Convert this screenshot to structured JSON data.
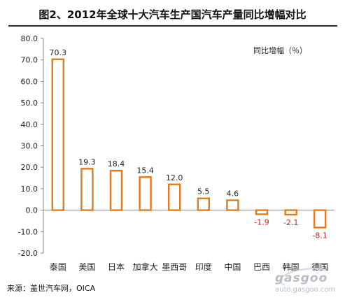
{
  "title": "图2、2012年全球十大汽车生产国汽车产量同比增幅对比",
  "legend_label": "同比增幅（％）",
  "source": "来源：盖世汽车网，OICA",
  "watermark": {
    "logo": "gasgoo",
    "url": "auto.gasgoo.com"
  },
  "colors": {
    "bar_stroke": "#e07b1c",
    "positive_label": "#222222",
    "negative_label": "#cc2222"
  },
  "chart_data": {
    "type": "bar",
    "title": "图2、2012年全球十大汽车生产国汽车产量同比增幅对比",
    "categories": [
      "泰国",
      "美国",
      "日本",
      "加拿大",
      "墨西哥",
      "印度",
      "中国",
      "巴西",
      "韩国",
      "德国"
    ],
    "series": [
      {
        "name": "同比增幅（％）",
        "values": [
          70.3,
          19.3,
          18.4,
          15.4,
          12.0,
          5.5,
          4.6,
          -1.9,
          -2.1,
          -8.1
        ]
      }
    ],
    "value_labels": [
      "70.3",
      "19.3",
      "18.4",
      "15.4",
      "12.0",
      "5.5",
      "4.6",
      "-1.9",
      "-2.1",
      "-8.1"
    ],
    "yticks": [
      "80.0",
      "70.0",
      "60.0",
      "50.0",
      "40.0",
      "30.0",
      "20.0",
      "10.0",
      "0.0",
      "-10.0",
      "-20.0"
    ],
    "ylim": [
      -20,
      80
    ],
    "grid": false,
    "legend": "top-right"
  }
}
